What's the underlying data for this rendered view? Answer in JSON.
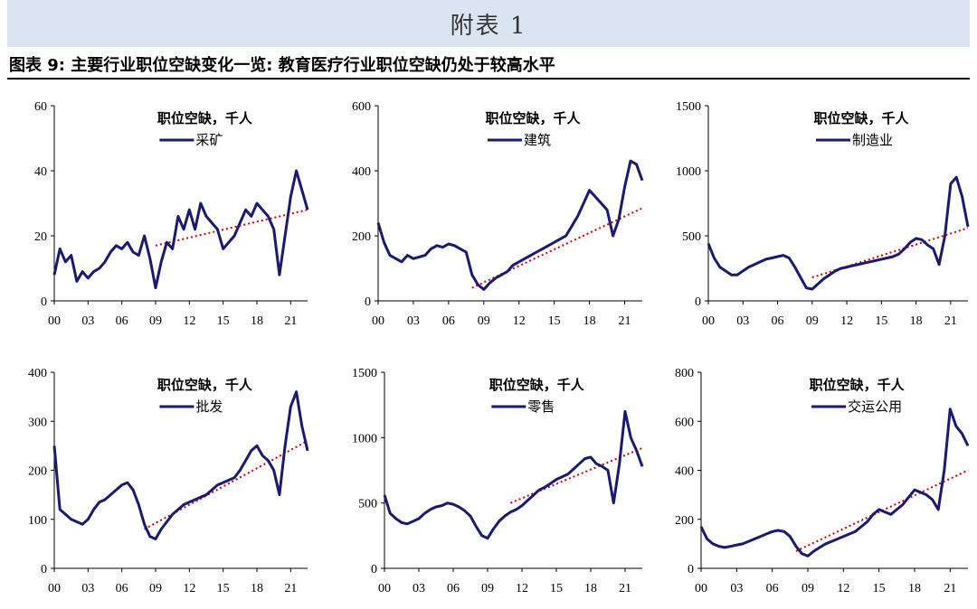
{
  "page": {
    "banner": "附表 1",
    "figure_title": "图表 9:  主要行业职位空缺变化一览:  教育医疗行业职位空缺仍处于较高水平"
  },
  "colors": {
    "series": "#1a1a6e",
    "trend": "#cc0000",
    "axis": "#000000"
  },
  "chart_data": [
    {
      "type": "line",
      "title": "职位空缺，千人",
      "legend": "采矿",
      "legend_position": "top-center",
      "x_ticks": [
        "00",
        "03",
        "06",
        "09",
        "12",
        "15",
        "18",
        "21"
      ],
      "xlim": [
        2000,
        2022.5
      ],
      "y_ticks": [
        0,
        20,
        40,
        60
      ],
      "ylim": [
        0,
        60
      ],
      "series": [
        {
          "name": "采矿",
          "x": [
            2000.0,
            2000.5,
            2001.0,
            2001.5,
            2002.0,
            2002.5,
            2003.0,
            2003.5,
            2004.0,
            2004.5,
            2005.0,
            2005.5,
            2006.0,
            2006.5,
            2007.0,
            2007.5,
            2008.0,
            2008.5,
            2009.0,
            2009.5,
            2010.0,
            2010.5,
            2011.0,
            2011.5,
            2012.0,
            2012.5,
            2013.0,
            2013.5,
            2014.0,
            2014.5,
            2015.0,
            2015.5,
            2016.0,
            2016.5,
            2017.0,
            2017.5,
            2018.0,
            2018.5,
            2019.0,
            2019.5,
            2020.0,
            2020.5,
            2021.0,
            2021.5,
            2022.0,
            2022.5
          ],
          "y": [
            8,
            16,
            12,
            14,
            6,
            9,
            7,
            9,
            10,
            12,
            15,
            17,
            16,
            18,
            15,
            14,
            20,
            13,
            4,
            12,
            18,
            16,
            26,
            22,
            28,
            22,
            30,
            26,
            24,
            22,
            16,
            18,
            20,
            24,
            28,
            26,
            30,
            28,
            26,
            22,
            8,
            20,
            32,
            40,
            34,
            28
          ]
        }
      ],
      "trend": {
        "x": [
          2009,
          2022.5
        ],
        "y": [
          17,
          28
        ]
      }
    },
    {
      "type": "line",
      "title": "职位空缺，千人",
      "legend": "建筑",
      "legend_position": "top-center",
      "x_ticks": [
        "00",
        "03",
        "06",
        "09",
        "12",
        "15",
        "18",
        "21"
      ],
      "xlim": [
        2000,
        2022.5
      ],
      "y_ticks": [
        0,
        200,
        400,
        600
      ],
      "ylim": [
        0,
        600
      ],
      "series": [
        {
          "name": "建筑",
          "x": [
            2000.0,
            2000.5,
            2001.0,
            2001.5,
            2002.0,
            2002.5,
            2003.0,
            2003.5,
            2004.0,
            2004.5,
            2005.0,
            2005.5,
            2006.0,
            2006.5,
            2007.0,
            2007.5,
            2008.0,
            2008.5,
            2009.0,
            2009.5,
            2010.0,
            2010.5,
            2011.0,
            2011.5,
            2012.0,
            2012.5,
            2013.0,
            2013.5,
            2014.0,
            2014.5,
            2015.0,
            2015.5,
            2016.0,
            2016.5,
            2017.0,
            2017.5,
            2018.0,
            2018.5,
            2019.0,
            2019.5,
            2020.0,
            2020.5,
            2021.0,
            2021.5,
            2022.0,
            2022.5
          ],
          "y": [
            240,
            180,
            140,
            130,
            120,
            140,
            130,
            135,
            140,
            160,
            170,
            165,
            175,
            170,
            160,
            150,
            80,
            50,
            35,
            55,
            70,
            80,
            90,
            110,
            120,
            130,
            140,
            150,
            160,
            170,
            180,
            190,
            200,
            230,
            260,
            300,
            340,
            320,
            300,
            280,
            200,
            250,
            350,
            430,
            420,
            370
          ]
        }
      ],
      "trend": {
        "x": [
          2008,
          2022.5
        ],
        "y": [
          40,
          285
        ]
      }
    },
    {
      "type": "line",
      "title": "职位空缺，千人",
      "legend": "制造业",
      "legend_position": "top-center",
      "x_ticks": [
        "00",
        "03",
        "06",
        "09",
        "12",
        "15",
        "18",
        "21"
      ],
      "xlim": [
        2000,
        2022.5
      ],
      "y_ticks": [
        0,
        500,
        1000,
        1500
      ],
      "ylim": [
        0,
        1500
      ],
      "series": [
        {
          "name": "制造业",
          "x": [
            2000.0,
            2000.5,
            2001.0,
            2001.5,
            2002.0,
            2002.5,
            2003.0,
            2003.5,
            2004.0,
            2004.5,
            2005.0,
            2005.5,
            2006.0,
            2006.5,
            2007.0,
            2007.5,
            2008.0,
            2008.5,
            2009.0,
            2009.5,
            2010.0,
            2010.5,
            2011.0,
            2011.5,
            2012.0,
            2012.5,
            2013.0,
            2013.5,
            2014.0,
            2014.5,
            2015.0,
            2015.5,
            2016.0,
            2016.5,
            2017.0,
            2017.5,
            2018.0,
            2018.5,
            2019.0,
            2019.5,
            2020.0,
            2020.5,
            2021.0,
            2021.5,
            2022.0,
            2022.5
          ],
          "y": [
            440,
            330,
            260,
            230,
            200,
            200,
            230,
            260,
            280,
            300,
            320,
            330,
            340,
            350,
            330,
            260,
            180,
            100,
            90,
            130,
            170,
            200,
            230,
            250,
            260,
            270,
            280,
            290,
            300,
            310,
            320,
            330,
            340,
            360,
            400,
            450,
            480,
            470,
            430,
            400,
            280,
            500,
            900,
            950,
            800,
            570
          ]
        }
      ],
      "trend": {
        "x": [
          2009,
          2022.5
        ],
        "y": [
          180,
          560
        ]
      }
    },
    {
      "type": "line",
      "title": "职位空缺，千人",
      "legend": "批发",
      "legend_position": "top-center",
      "x_ticks": [
        "00",
        "03",
        "06",
        "09",
        "12",
        "15",
        "18",
        "21"
      ],
      "xlim": [
        2000,
        2022.5
      ],
      "y_ticks": [
        0,
        100,
        200,
        300,
        400
      ],
      "ylim": [
        0,
        400
      ],
      "series": [
        {
          "name": "批发",
          "x": [
            2000.0,
            2000.5,
            2001.0,
            2001.5,
            2002.0,
            2002.5,
            2003.0,
            2003.5,
            2004.0,
            2004.5,
            2005.0,
            2005.5,
            2006.0,
            2006.5,
            2007.0,
            2007.5,
            2008.0,
            2008.5,
            2009.0,
            2009.5,
            2010.0,
            2010.5,
            2011.0,
            2011.5,
            2012.0,
            2012.5,
            2013.0,
            2013.5,
            2014.0,
            2014.5,
            2015.0,
            2015.5,
            2016.0,
            2016.5,
            2017.0,
            2017.5,
            2018.0,
            2018.5,
            2019.0,
            2019.5,
            2020.0,
            2020.5,
            2021.0,
            2021.5,
            2022.0,
            2022.5
          ],
          "y": [
            250,
            120,
            110,
            100,
            95,
            90,
            100,
            120,
            135,
            140,
            150,
            160,
            170,
            175,
            160,
            130,
            90,
            65,
            60,
            80,
            95,
            110,
            120,
            130,
            135,
            140,
            145,
            150,
            160,
            170,
            175,
            180,
            185,
            200,
            220,
            240,
            250,
            230,
            220,
            200,
            150,
            250,
            330,
            360,
            290,
            240
          ]
        }
      ],
      "trend": {
        "x": [
          2008,
          2022.5
        ],
        "y": [
          80,
          260
        ]
      }
    },
    {
      "type": "line",
      "title": "职位空缺，千人",
      "legend": "零售",
      "legend_position": "top-center",
      "x_ticks": [
        "00",
        "03",
        "06",
        "09",
        "12",
        "15",
        "18",
        "21"
      ],
      "xlim": [
        2000,
        2022.5
      ],
      "y_ticks": [
        0,
        500,
        1000,
        1500
      ],
      "ylim": [
        0,
        1500
      ],
      "series": [
        {
          "name": "零售",
          "x": [
            2000.0,
            2000.5,
            2001.0,
            2001.5,
            2002.0,
            2002.5,
            2003.0,
            2003.5,
            2004.0,
            2004.5,
            2005.0,
            2005.5,
            2006.0,
            2006.5,
            2007.0,
            2007.5,
            2008.0,
            2008.5,
            2009.0,
            2009.5,
            2010.0,
            2010.5,
            2011.0,
            2011.5,
            2012.0,
            2012.5,
            2013.0,
            2013.5,
            2014.0,
            2014.5,
            2015.0,
            2015.5,
            2016.0,
            2016.5,
            2017.0,
            2017.5,
            2018.0,
            2018.5,
            2019.0,
            2019.5,
            2020.0,
            2020.5,
            2021.0,
            2021.5,
            2022.0,
            2022.5
          ],
          "y": [
            560,
            420,
            380,
            350,
            340,
            360,
            380,
            420,
            450,
            470,
            480,
            500,
            490,
            470,
            440,
            400,
            320,
            250,
            230,
            300,
            360,
            400,
            430,
            450,
            480,
            520,
            560,
            600,
            620,
            650,
            680,
            700,
            720,
            760,
            800,
            840,
            850,
            800,
            780,
            750,
            500,
            800,
            1200,
            1000,
            900,
            780
          ]
        }
      ],
      "trend": {
        "x": [
          2011,
          2022.5
        ],
        "y": [
          500,
          920
        ]
      }
    },
    {
      "type": "line",
      "title": "职位空缺，千人",
      "legend": "交运公用",
      "legend_position": "top-center",
      "x_ticks": [
        "00",
        "03",
        "06",
        "09",
        "12",
        "15",
        "18",
        "21"
      ],
      "xlim": [
        2000,
        2022.5
      ],
      "y_ticks": [
        0,
        200,
        400,
        600,
        800
      ],
      "ylim": [
        0,
        800
      ],
      "series": [
        {
          "name": "交运公用",
          "x": [
            2000.0,
            2000.5,
            2001.0,
            2001.5,
            2002.0,
            2002.5,
            2003.0,
            2003.5,
            2004.0,
            2004.5,
            2005.0,
            2005.5,
            2006.0,
            2006.5,
            2007.0,
            2007.5,
            2008.0,
            2008.5,
            2009.0,
            2009.5,
            2010.0,
            2010.5,
            2011.0,
            2011.5,
            2012.0,
            2012.5,
            2013.0,
            2013.5,
            2014.0,
            2014.5,
            2015.0,
            2015.5,
            2016.0,
            2016.5,
            2017.0,
            2017.5,
            2018.0,
            2018.5,
            2019.0,
            2019.5,
            2020.0,
            2020.5,
            2021.0,
            2021.5,
            2022.0,
            2022.5
          ],
          "y": [
            170,
            120,
            100,
            90,
            85,
            90,
            95,
            100,
            110,
            120,
            130,
            140,
            150,
            155,
            150,
            130,
            90,
            60,
            50,
            70,
            85,
            100,
            110,
            120,
            130,
            140,
            150,
            170,
            190,
            220,
            240,
            230,
            220,
            240,
            260,
            290,
            320,
            310,
            300,
            280,
            240,
            400,
            650,
            580,
            550,
            500
          ]
        }
      ],
      "trend": {
        "x": [
          2008,
          2022.5
        ],
        "y": [
          70,
          400
        ]
      }
    }
  ]
}
